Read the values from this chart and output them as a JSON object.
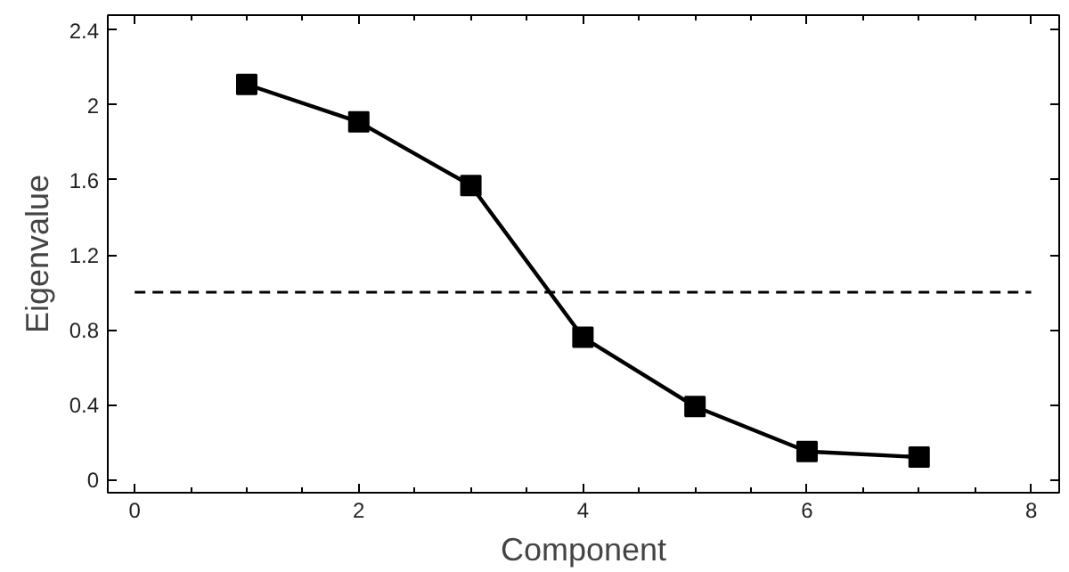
{
  "chart_data": {
    "type": "line",
    "xlabel": "Component",
    "ylabel": "Eigenvalue",
    "x": [
      1,
      2,
      3,
      4,
      5,
      6,
      7
    ],
    "series": [
      {
        "color": "#000000",
        "values": [
          2.11,
          1.91,
          1.57,
          0.76,
          0.39,
          0.15,
          0.12
        ]
      }
    ],
    "xlim": [
      -0.24,
      8.25
    ],
    "ylim": [
      -0.07,
      2.48
    ],
    "xticks": [
      0,
      2,
      4,
      6,
      8
    ],
    "yticks": [
      0,
      {
        "value": 0.4,
        "label": "0.4"
      },
      {
        "value": 0.8,
        "label": "0.8"
      },
      {
        "value": 1.2,
        "label": "1.2"
      },
      {
        "value": 1.6,
        "label": "1.6"
      },
      2,
      {
        "value": 2.4,
        "label": "2.4"
      }
    ],
    "ref_lines": [
      {
        "axis": "y",
        "value": 1,
        "color": "#000000",
        "line_style": "dashed"
      }
    ],
    "marker": "square",
    "line_style": "solid",
    "grid": false
  }
}
